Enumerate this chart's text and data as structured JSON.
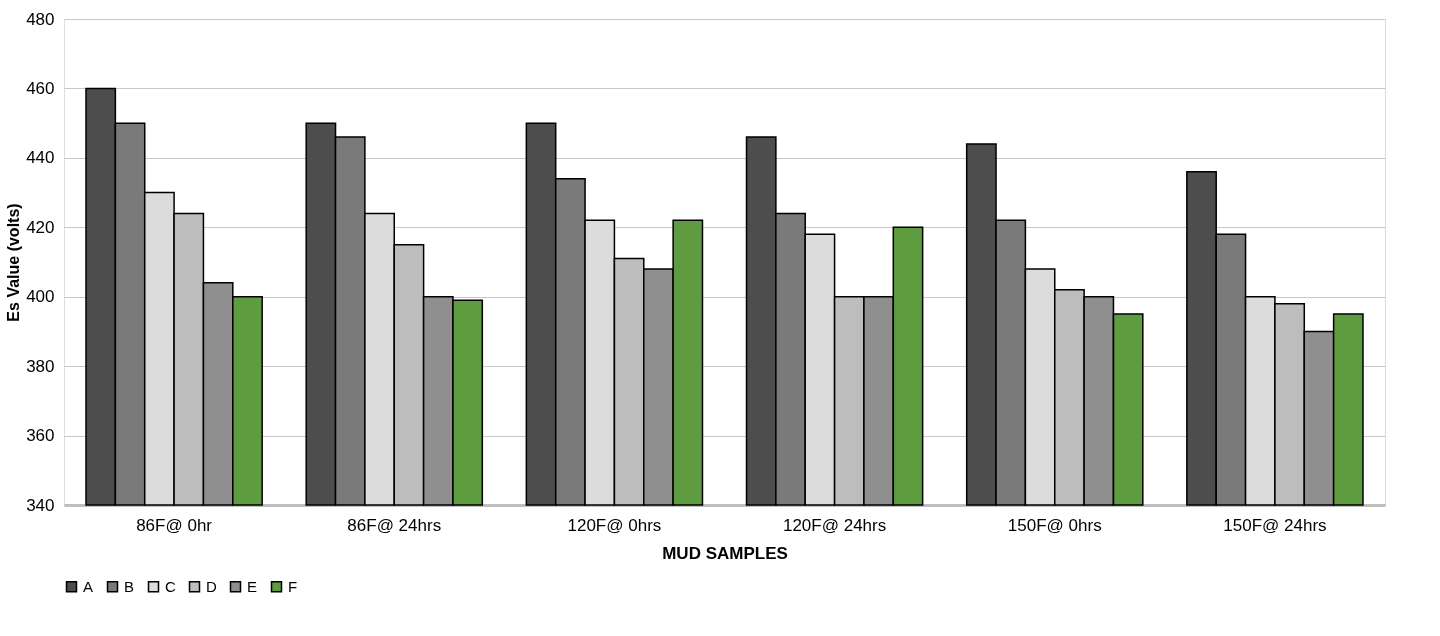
{
  "chart_data": {
    "type": "bar",
    "xlabel": "MUD SAMPLES",
    "ylabel": "Es Value (volts)",
    "categories": [
      "86F@ 0hr",
      "86F@ 24hrs",
      "120F@ 0hrs",
      "120F@ 24hrs",
      "150F@ 0hrs",
      "150F@ 24hrs"
    ],
    "series": [
      {
        "name": "A",
        "color": "#4d4d4d",
        "values": [
          460,
          450,
          450,
          446,
          444,
          436
        ]
      },
      {
        "name": "B",
        "color": "#7a7a7a",
        "values": [
          450,
          446,
          434,
          424,
          422,
          418
        ]
      },
      {
        "name": "C",
        "color": "#dcdcdc",
        "values": [
          430,
          424,
          422,
          418,
          408,
          400
        ]
      },
      {
        "name": "D",
        "color": "#bdbdbd",
        "values": [
          424,
          415,
          411,
          400,
          402,
          398
        ]
      },
      {
        "name": "E",
        "color": "#8f8f8f",
        "values": [
          404,
          400,
          408,
          400,
          400,
          390
        ]
      },
      {
        "name": "F",
        "color": "#5e9c3f",
        "values": [
          400,
          399,
          422,
          420,
          395,
          395
        ]
      }
    ],
    "ylim": [
      340,
      480
    ],
    "yticks": [
      340,
      360,
      380,
      400,
      420,
      440,
      460,
      480
    ],
    "grid": "y",
    "legend": "bottom"
  }
}
